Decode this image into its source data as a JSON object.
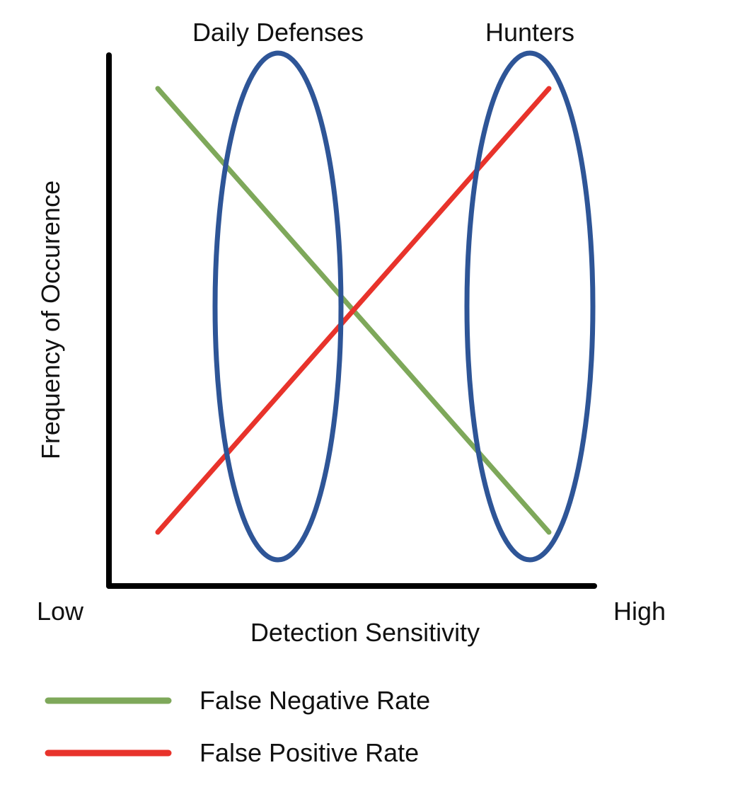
{
  "diagram": {
    "y_axis_label": "Frequency of Occurence",
    "x_axis_label": "Detection Sensitivity",
    "x_low_label": "Low",
    "x_high_label": "High",
    "groups": [
      {
        "label": "Daily Defenses",
        "color": "#2e5597"
      },
      {
        "label": "Hunters",
        "color": "#2e5597"
      }
    ],
    "lines": [
      {
        "name": "False Negative Rate",
        "color": "#7ea85a",
        "trend": "decreasing"
      },
      {
        "name": "False Positive Rate",
        "color": "#e8332b",
        "trend": "increasing"
      }
    ],
    "axis_color": "#000000"
  }
}
